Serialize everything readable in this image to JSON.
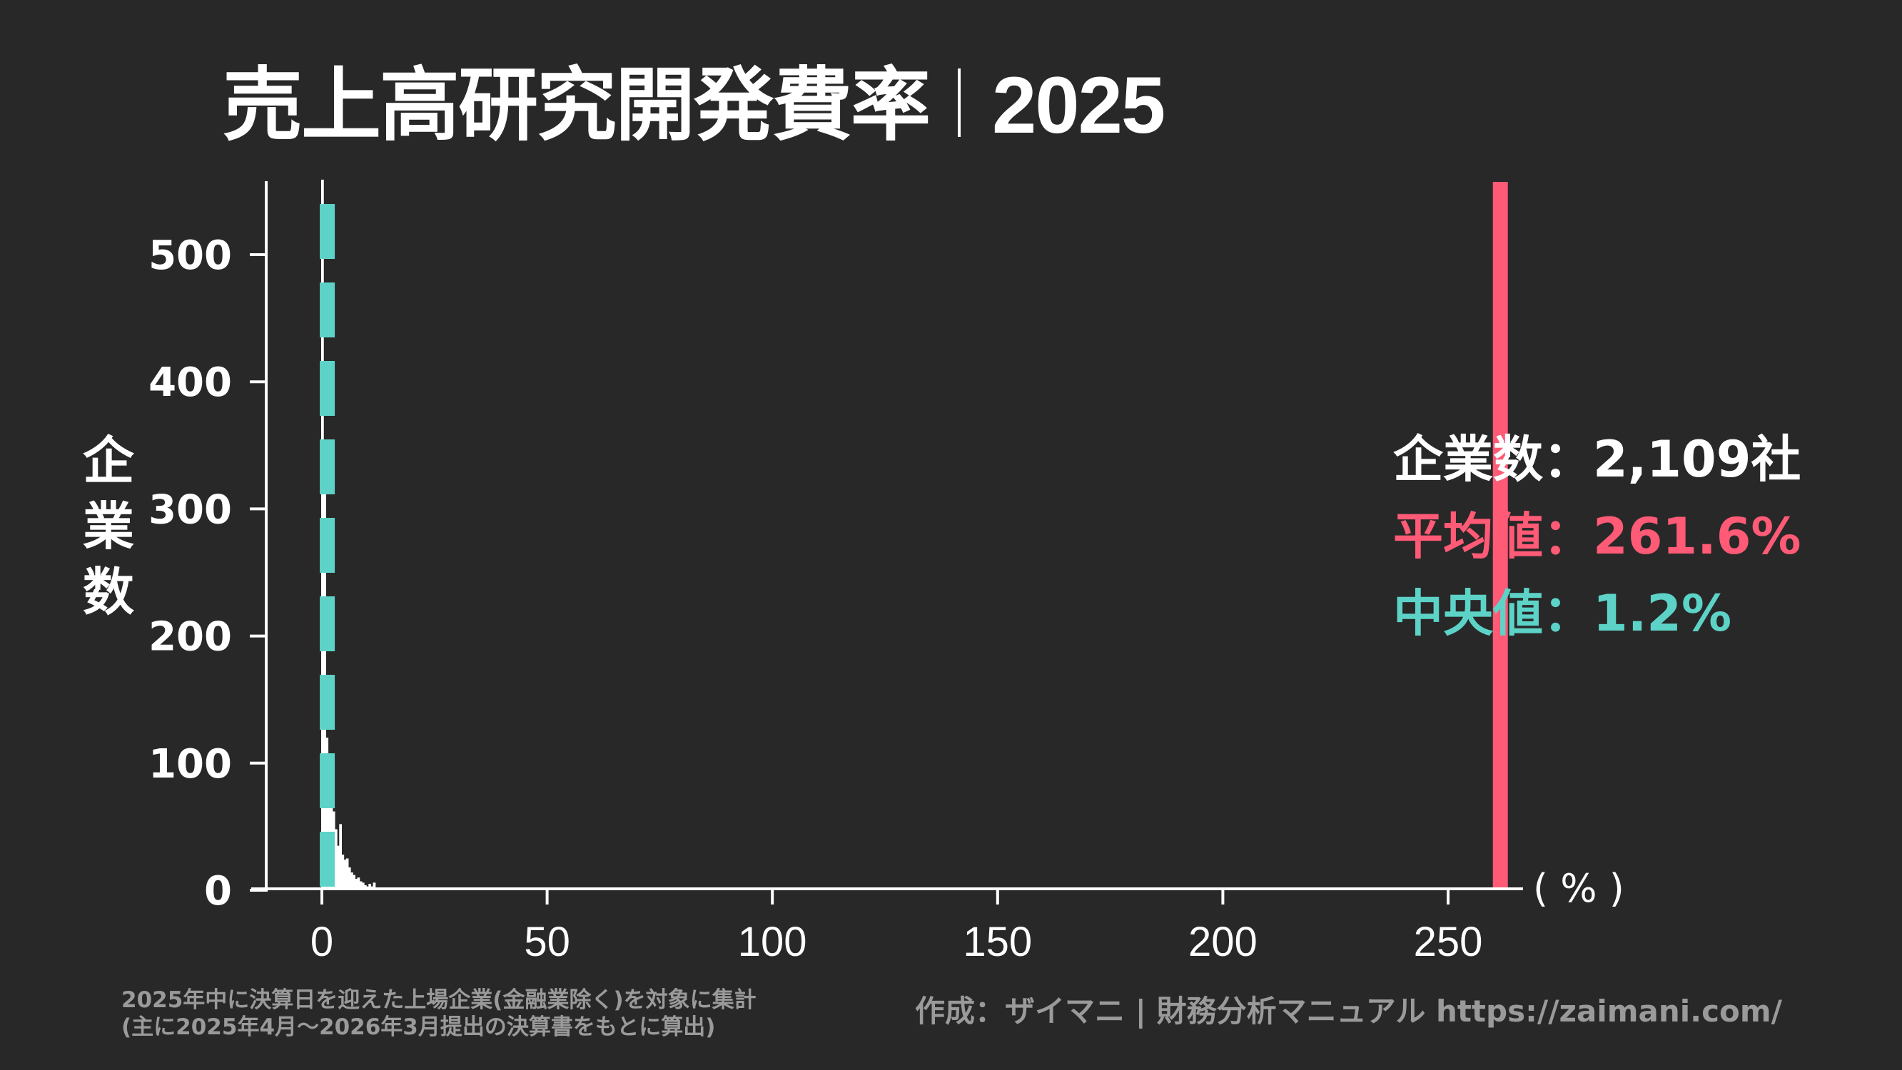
{
  "header": {
    "title": "売上高研究開発費率",
    "year": "2025"
  },
  "colors": {
    "background": "#282828",
    "bars": "#ffffff",
    "mean": "#ff5a76",
    "median": "#5dd3c8",
    "footnote": "#9a9a9a"
  },
  "axes": {
    "ylabel_chars": [
      "企",
      "業",
      "数"
    ],
    "xunit": "( % )",
    "yticks": [
      "0",
      "100",
      "200",
      "300",
      "400",
      "500"
    ],
    "xticks": [
      "0",
      "50",
      "100",
      "150",
      "200",
      "250"
    ]
  },
  "stats": {
    "count_label": "企業数",
    "count_value": "2,109社",
    "mean_label": "平均値",
    "mean_value": "261.6%",
    "median_label": "中央値",
    "median_value": "1.2%",
    "colon": "："
  },
  "footer": {
    "note_line1": "2025年中に決算日を迎えた上場企業(金融業除く)を対象に集計",
    "note_line2": "(主に2025年4月〜2026年3月提出の決算書をもとに算出)",
    "credit": "作成：ザイマニ | 財務分析マニュアル https://zaimani.com/"
  },
  "chart_data": {
    "type": "bar",
    "title": "売上高研究開発費率｜2025",
    "xlabel": "(%)",
    "ylabel": "企業数",
    "xlim": [
      -13,
      273
    ],
    "ylim": [
      0,
      560
    ],
    "grid": false,
    "bin_width": 0.5,
    "x": [
      0.0,
      0.5,
      1.0,
      1.5,
      2.0,
      2.5,
      3.0,
      3.5,
      4.0,
      4.5,
      5.0,
      5.5,
      6.0,
      6.5,
      7.0,
      7.5,
      8.0,
      8.5,
      9.0,
      9.5,
      10.0,
      10.5,
      11.0,
      11.5
    ],
    "values": [
      559,
      330,
      120,
      90,
      72,
      62,
      48,
      35,
      52,
      28,
      24,
      25,
      18,
      14,
      12,
      9,
      10,
      7,
      6,
      4,
      3,
      5,
      3,
      6
    ],
    "annotations": {
      "company_count": "2,109社",
      "mean": 261.6,
      "median": 1.2,
      "mean_line_style": "solid",
      "median_line_style": "dashed"
    }
  }
}
